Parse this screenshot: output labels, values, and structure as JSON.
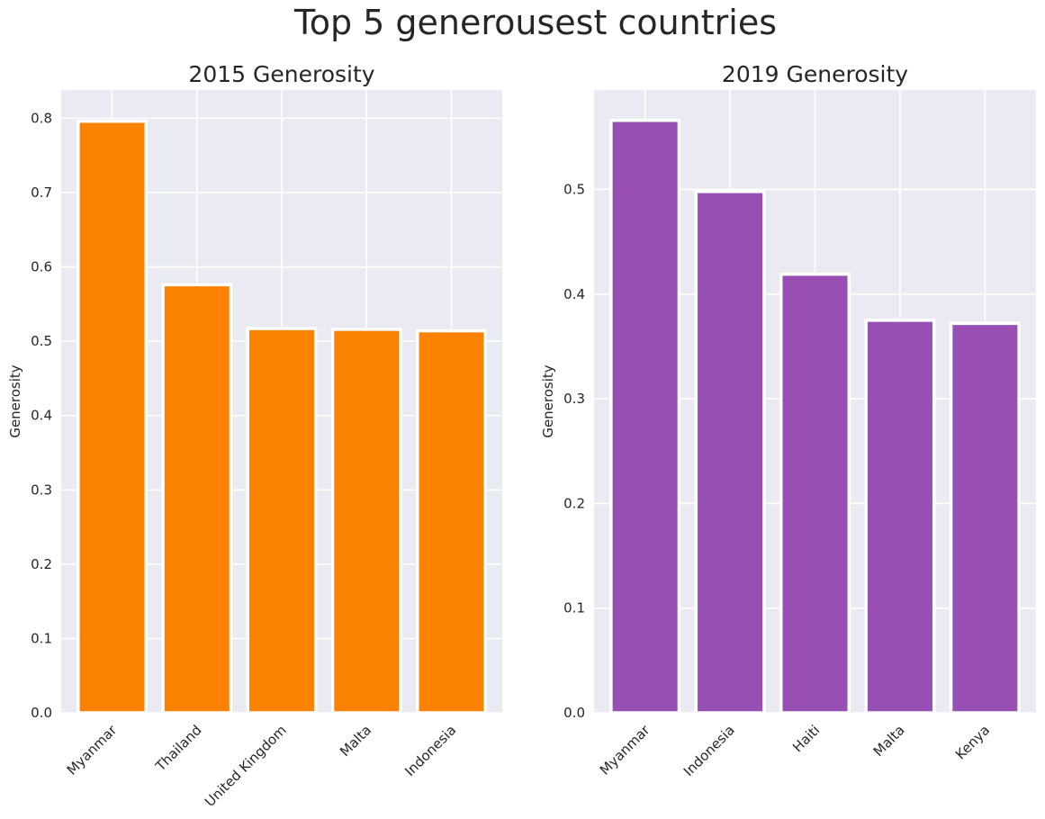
{
  "figure": {
    "title": "Top 5 generousest countries"
  },
  "colors": {
    "panel_bg": "#eaeaf2",
    "grid": "#ffffff",
    "bar_2015": "#fb8100",
    "bar_2019": "#984fb3",
    "bar_edge": "#ffffff"
  },
  "chart_data": [
    {
      "type": "bar",
      "title": "2015 Generosity",
      "xlabel": "",
      "ylabel": "Generosity",
      "categories": [
        "Myanmar",
        "Thailand",
        "United Kingdom",
        "Malta",
        "Indonesia"
      ],
      "values": [
        0.796,
        0.576,
        0.517,
        0.516,
        0.514
      ],
      "ylim": [
        0,
        0.838
      ],
      "yticks": [
        0.0,
        0.1,
        0.2,
        0.3,
        0.4,
        0.5,
        0.6,
        0.7,
        0.8
      ],
      "ytick_labels": [
        "0.0",
        "0.1",
        "0.2",
        "0.3",
        "0.4",
        "0.5",
        "0.6",
        "0.7",
        "0.8"
      ],
      "color": "#fb8100",
      "grid": true
    },
    {
      "type": "bar",
      "title": "2019 Generosity",
      "xlabel": "",
      "ylabel": "Generosity",
      "categories": [
        "Myanmar",
        "Indonesia",
        "Haiti",
        "Malta",
        "Kenya"
      ],
      "values": [
        0.566,
        0.498,
        0.419,
        0.375,
        0.372
      ],
      "ylim": [
        0,
        0.595
      ],
      "yticks": [
        0.0,
        0.1,
        0.2,
        0.3,
        0.4,
        0.5
      ],
      "ytick_labels": [
        "0.0",
        "0.1",
        "0.2",
        "0.3",
        "0.4",
        "0.5"
      ],
      "color": "#984fb3",
      "grid": true
    }
  ]
}
